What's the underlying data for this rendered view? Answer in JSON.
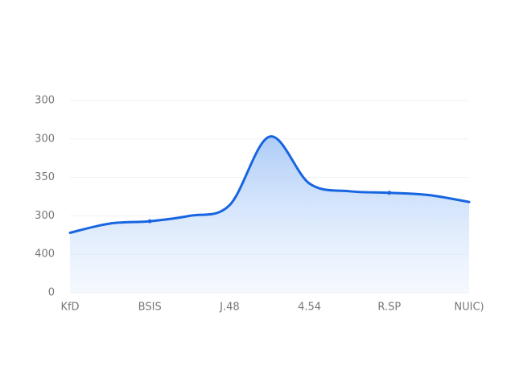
{
  "chart_data": {
    "type": "area",
    "categories": [
      "KfD",
      null,
      "BSIS",
      null,
      "J.48",
      null,
      "4.54",
      null,
      "R.SP",
      null,
      "NUIC)"
    ],
    "values": [
      78,
      90,
      93,
      100,
      114,
      203,
      142,
      132,
      130,
      127,
      118
    ],
    "color": "#1765e0",
    "ylim": [
      0,
      250
    ],
    "yticks": [
      0,
      {
        "value": 50,
        "label": "400"
      },
      {
        "value": 100,
        "label": "300"
      },
      {
        "value": 150,
        "label": "350"
      },
      {
        "value": 200,
        "label": "300"
      },
      {
        "value": 250,
        "label": "300"
      }
    ],
    "grid": true
  }
}
